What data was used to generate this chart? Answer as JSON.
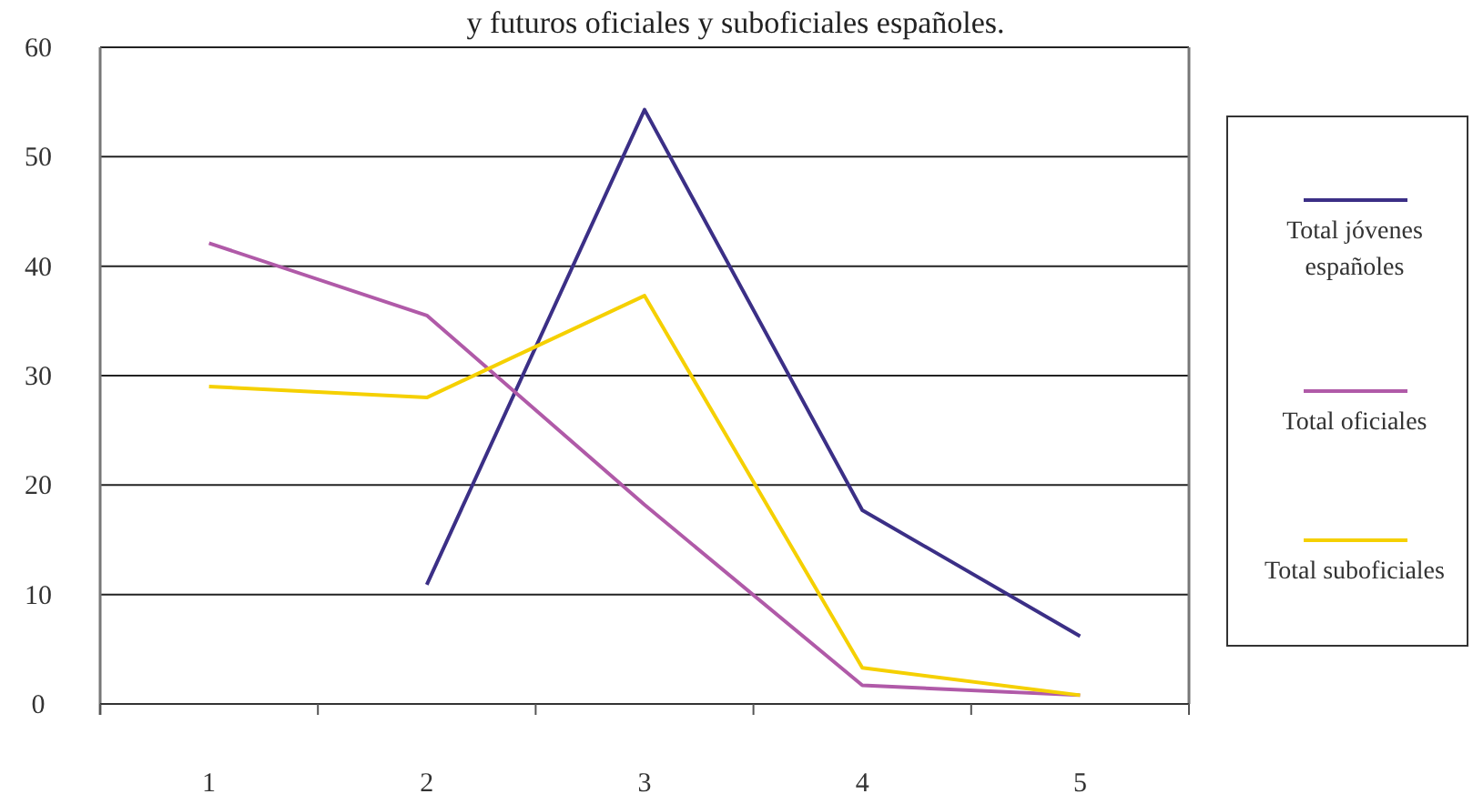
{
  "chart_data": {
    "type": "line",
    "title": "y futuros oficiales y suboficiales españoles.",
    "categories": [
      "1",
      "2",
      "3",
      "4",
      "5"
    ],
    "series": [
      {
        "name": "Total jóvenes españoles",
        "color": "#3b2f86",
        "values": [
          null,
          10.9,
          54.3,
          17.7,
          6.2
        ]
      },
      {
        "name": "Total oficiales",
        "color": "#b05aa8",
        "values": [
          42.1,
          35.5,
          18.2,
          1.7,
          0.8
        ]
      },
      {
        "name": "Total suboficiales",
        "color": "#f5d000",
        "values": [
          29,
          28,
          37.3,
          3.3,
          0.8
        ]
      }
    ],
    "ylim": [
      0,
      60
    ],
    "yticks": [
      0,
      10,
      20,
      30,
      40,
      50,
      60
    ],
    "grid": "y",
    "legend": "right",
    "marker": "none",
    "line_style": "solid"
  }
}
